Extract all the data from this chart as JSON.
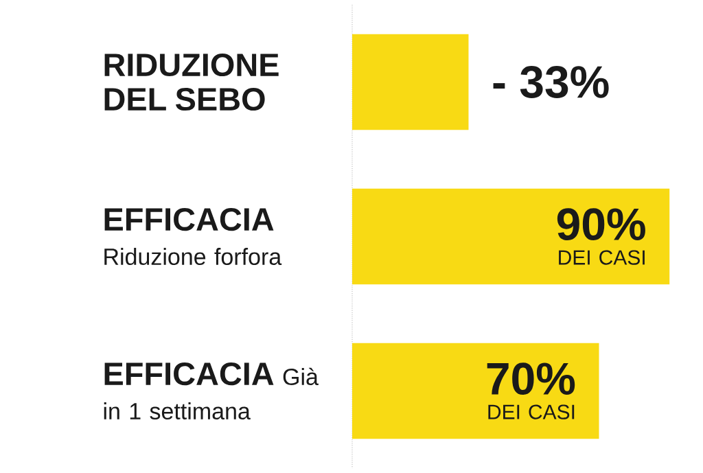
{
  "chart_data": {
    "type": "bar",
    "orientation": "horizontal",
    "categories": [
      "**RIDUZIONE DEL SEBO**",
      "**EFFICACIA** Riduzione forfora",
      "**EFFICACIA** Già in 1 settimana"
    ],
    "values": [
      33,
      90,
      70
    ],
    "color": "#f8da14",
    "tick_labels": "y",
    "value_labels": [
      null,
      "**90%** DEI CASI",
      "**70%** DEI CASI"
    ],
    "annotations": [
      {
        "text": "**- 33%**",
        "x": 33,
        "y": "**RIDUZIONE DEL SEBO**"
      }
    ]
  }
}
